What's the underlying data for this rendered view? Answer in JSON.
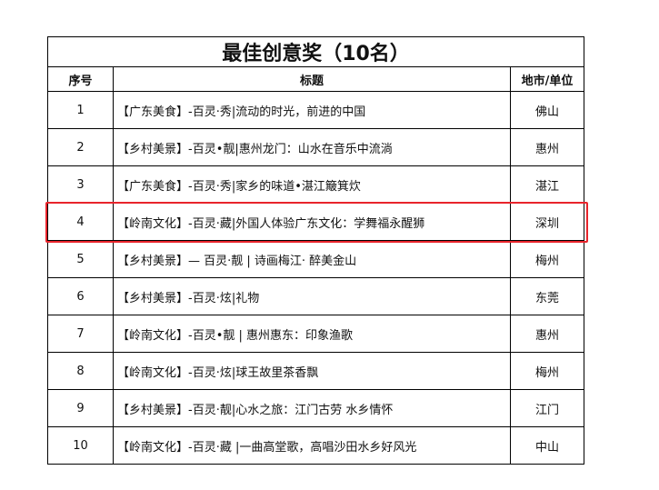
{
  "title": "最佳创意奖（10名）",
  "headers": {
    "no": "序号",
    "title": "标题",
    "city": "地市/单位"
  },
  "highlight_color": "#e8242b",
  "highlighted_row": "4",
  "rows": [
    {
      "no": "1",
      "title": "【广东美食】-百灵·秀|流动的时光，前进的中国",
      "city": "佛山"
    },
    {
      "no": "2",
      "title": "【乡村美景】-百灵•靓|惠州龙门：山水在音乐中流淌",
      "city": "惠州"
    },
    {
      "no": "3",
      "title": "【广东美食】-百灵·秀|家乡的味道•湛江簸箕炊",
      "city": "湛江"
    },
    {
      "no": "4",
      "title": "【岭南文化】-百灵·藏|外国人体验广东文化：学舞福永醒狮",
      "city": "深圳"
    },
    {
      "no": "5",
      "title": "【乡村美景】— 百灵·靓 | 诗画梅江· 醉美金山",
      "city": "梅州"
    },
    {
      "no": "6",
      "title": "【乡村美景】-百灵·炫|礼物",
      "city": "东莞"
    },
    {
      "no": "7",
      "title": "【岭南文化】-百灵•靓 | 惠州惠东：印象渔歌",
      "city": "惠州"
    },
    {
      "no": "8",
      "title": "【岭南文化】-百灵·炫|球王故里茶香飘",
      "city": "梅州"
    },
    {
      "no": "9",
      "title": "【乡村美景】-百灵·靓|心水之旅：江门古劳 水乡情怀",
      "city": "江门"
    },
    {
      "no": "10",
      "title": "【岭南文化】-百灵·藏 |一曲高堂歌，高唱沙田水乡好风光",
      "city": "中山"
    }
  ]
}
